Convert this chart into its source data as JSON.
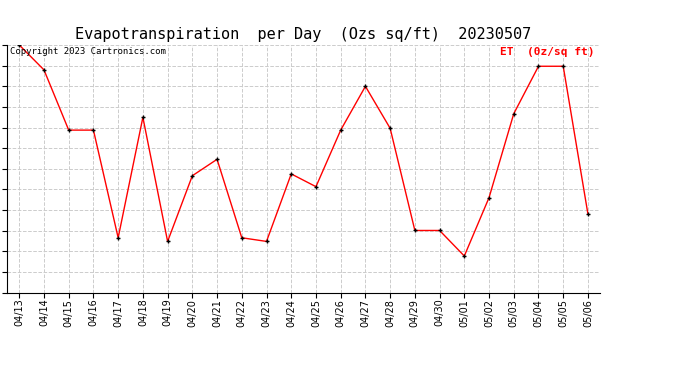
{
  "title": "Evapotranspiration  per Day  (Ozs sq/ft)  20230507",
  "legend_label": "ET  (0z/sq ft)",
  "copyright": "Copyright 2023 Cartronics.com",
  "dates": [
    "04/13",
    "04/14",
    "04/15",
    "04/16",
    "04/17",
    "04/18",
    "04/19",
    "04/20",
    "04/21",
    "04/22",
    "04/23",
    "04/24",
    "04/25",
    "04/26",
    "04/27",
    "04/28",
    "04/29",
    "04/30",
    "05/01",
    "05/02",
    "05/03",
    "05/04",
    "05/05",
    "05/06"
  ],
  "values": [
    13.565,
    12.2,
    8.9,
    8.9,
    3.0,
    9.6,
    2.8,
    6.4,
    7.3,
    3.0,
    2.8,
    6.5,
    5.8,
    8.9,
    11.3,
    9.0,
    3.4,
    3.4,
    2.0,
    5.2,
    9.8,
    12.4,
    12.4,
    4.3
  ],
  "ylim": [
    0.0,
    13.565
  ],
  "yticks": [
    0.0,
    1.13,
    2.261,
    3.391,
    4.522,
    5.652,
    6.782,
    7.913,
    9.043,
    10.174,
    11.304,
    12.435,
    13.565
  ],
  "line_color": "#ff0000",
  "marker_color": "#000000",
  "background_color": "#ffffff",
  "grid_color": "#cccccc",
  "title_fontsize": 11,
  "tick_fontsize": 7,
  "legend_color": "#ff0000",
  "copyright_color": "#000000"
}
